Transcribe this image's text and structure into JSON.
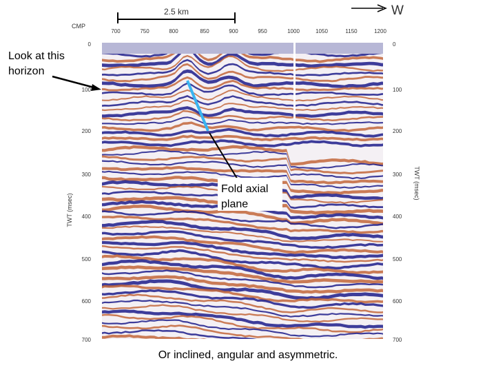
{
  "scale_bar": "2.5 km",
  "direction": "W",
  "cmp_label": "CMP",
  "cmp_ticks": [
    "700",
    "750",
    "800",
    "850",
    "900",
    "950",
    "1000",
    "1050",
    "1150",
    "1200"
  ],
  "twt_ticks_left": [
    "0",
    "100",
    "200",
    "300",
    "400",
    "500",
    "600",
    "700"
  ],
  "twt_ticks_right": [
    "0",
    "100",
    "200",
    "300",
    "400",
    "500",
    "600",
    "700"
  ],
  "y_axis_left": "TWT (msec)",
  "y_axis_right": "TWT (msec)",
  "annotations": {
    "horizon": [
      "Look at this",
      "horizon"
    ],
    "fold": [
      "Fold axial",
      "plane"
    ]
  },
  "caption": "Or inclined, angular and asymmetric."
}
